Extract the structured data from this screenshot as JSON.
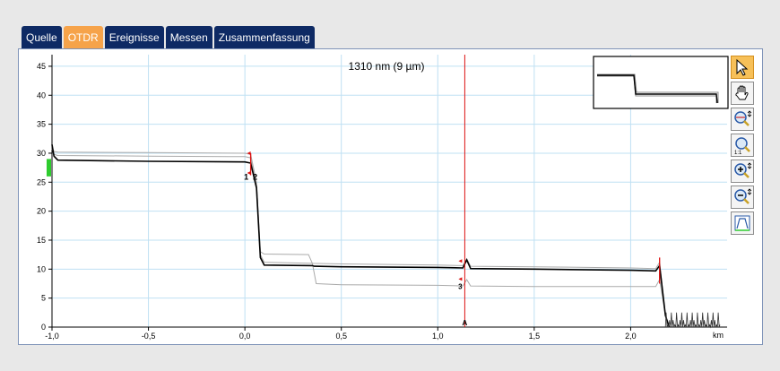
{
  "tabs": [
    {
      "label": "Quelle",
      "active": false
    },
    {
      "label": "OTDR",
      "active": true
    },
    {
      "label": "Ereignisse",
      "active": false
    },
    {
      "label": "Messen",
      "active": false
    },
    {
      "label": "Zusammenfassung",
      "active": false
    }
  ],
  "icons": [
    "pointer-icon",
    "pan-hand-icon",
    "zoom-fit-icon",
    "zoom-1-1-icon",
    "zoom-in-icon",
    "zoom-out-icon",
    "full-view-icon"
  ],
  "colors": {
    "tab_active": "#f6a34a",
    "tab_inactive": "#0e2a64",
    "cursor": "#d11",
    "grid": "#bfe0f3",
    "trace": "#000000",
    "ref_trace": "#aaaaaa",
    "marker_green": "#2ecc2e"
  },
  "chart_data": {
    "type": "line",
    "title": "1310 nm (9 µm)",
    "xlabel": "km",
    "ylabel": "",
    "xlim": [
      -1.0,
      2.5
    ],
    "ylim": [
      0,
      47
    ],
    "x_ticks": [
      -1.0,
      -0.5,
      0.0,
      0.5,
      1.0,
      1.5,
      2.0
    ],
    "x_tick_labels": [
      "-1,0",
      "-0,5",
      "0,0",
      "0,5",
      "1,0",
      "1,5",
      "2,0"
    ],
    "y_ticks": [
      0,
      5,
      10,
      15,
      20,
      25,
      30,
      35,
      40,
      45
    ],
    "y_tick_labels": [
      "0",
      "5",
      "10",
      "15",
      "20",
      "25",
      "30",
      "35",
      "40",
      "45"
    ],
    "grid": true,
    "series": [
      {
        "x": [
          -1.0,
          -0.99,
          -0.97,
          -0.5,
          0.0,
          0.03,
          0.06,
          0.08,
          0.1,
          0.35,
          0.36,
          0.5,
          1.0,
          1.13,
          1.15,
          1.17,
          1.5,
          2.0,
          2.13,
          2.15,
          2.18,
          2.2
        ],
        "y": [
          31.5,
          29.5,
          28.8,
          28.6,
          28.5,
          28.3,
          24,
          12,
          10.7,
          10.6,
          10.5,
          10.4,
          10.3,
          10.2,
          11.6,
          10.1,
          10.0,
          9.8,
          9.7,
          10.6,
          2,
          0
        ]
      },
      {
        "x": [
          -1.0,
          -0.99,
          -0.97,
          -0.5,
          0.0,
          0.03,
          0.06,
          0.08,
          0.1,
          0.33,
          0.35,
          0.5,
          1.0,
          1.13,
          1.15,
          1.17,
          1.5,
          2.0,
          2.13,
          2.15,
          2.18,
          2.2
        ],
        "y": [
          31.0,
          30.3,
          30.2,
          30.1,
          30.0,
          29.8,
          25,
          13,
          12.6,
          12.5,
          11.0,
          10.9,
          10.7,
          10.6,
          11.8,
          10.5,
          10.4,
          10.2,
          10.1,
          11.2,
          2,
          0
        ]
      },
      {
        "x": [
          -1.0,
          -0.99,
          -0.97,
          -0.5,
          0.0,
          0.03,
          0.06,
          0.08,
          0.1,
          0.35,
          0.37,
          0.5,
          1.0,
          1.13,
          1.15,
          1.17,
          1.5,
          2.0,
          2.13,
          2.15,
          2.18,
          2.2
        ],
        "y": [
          30.8,
          29.8,
          29.6,
          29.5,
          29.4,
          29.2,
          24.5,
          12.5,
          11.2,
          11.0,
          7.5,
          7.3,
          7.2,
          7.1,
          8.2,
          7.1,
          7.0,
          7.0,
          7.0,
          8.2,
          2,
          0
        ]
      }
    ],
    "markers": [
      {
        "label": "1",
        "x": 0.03
      },
      {
        "label": "2",
        "x": 0.03
      },
      {
        "label": "A",
        "x": 1.14
      },
      {
        "label": "3",
        "x": 1.14
      }
    ],
    "cursor": {
      "label": "A",
      "x": 1.14
    },
    "inset": {
      "type": "overview",
      "note": ""
    }
  }
}
